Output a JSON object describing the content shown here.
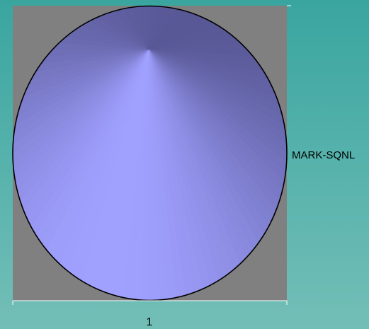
{
  "chart_data": {
    "type": "pie",
    "categories": [
      "1"
    ],
    "series": [
      {
        "name": "MARK-SQNL",
        "values": [
          1
        ]
      }
    ],
    "legend_position": "right",
    "grid": false
  },
  "colors": {
    "background_top": "#3aa59f",
    "background_bottom": "#73bfb7",
    "plot_area": "#808080",
    "slice_highlight": "#a0a0ff",
    "slice_shadow": "#3c3c6e",
    "slice_outline": "#000000",
    "axis": "#ffffff"
  }
}
